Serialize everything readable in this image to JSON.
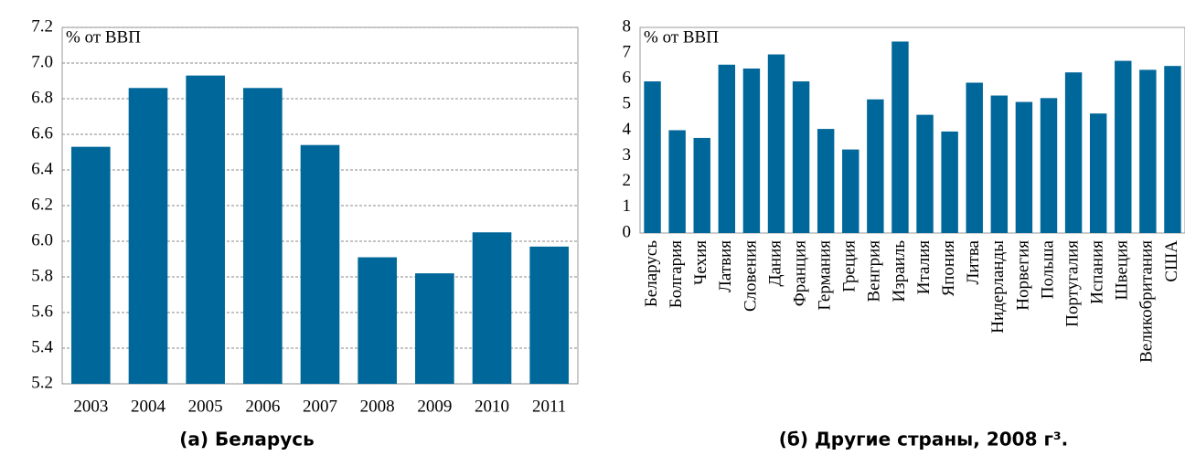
{
  "chart_data": [
    {
      "type": "bar",
      "annotation": "% от ВВП",
      "caption": "(а) Беларусь",
      "categories": [
        "2003",
        "2004",
        "2005",
        "2006",
        "2007",
        "2008",
        "2009",
        "2010",
        "2011"
      ],
      "values": [
        6.53,
        6.86,
        6.93,
        6.86,
        6.54,
        5.91,
        5.82,
        6.05,
        5.97
      ],
      "color": "#00679a",
      "ylim": [
        5.2,
        7.2
      ],
      "yticks": [
        5.2,
        5.4,
        5.6,
        5.8,
        {
          "value": 6,
          "label": "6.0"
        },
        6.2,
        6.4,
        6.6,
        6.8,
        {
          "value": 7,
          "label": "7.0"
        },
        7.2
      ],
      "grid": true
    },
    {
      "type": "bar",
      "annotation": "% от ВВП",
      "caption": "(б) Другие страны, 2008 г³.",
      "categories": [
        "Беларусь",
        "Болгария",
        "Чехия",
        "Латвия",
        "Словения",
        "Дания",
        "Франция",
        "Германия",
        "Греция",
        "Венгрия",
        "Израиль",
        "Италия",
        "Япония",
        "Литва",
        "Нидерланды",
        "Норвегия",
        "Польша",
        "Португалия",
        "Испания",
        "Швеция",
        "Великобритания",
        "США"
      ],
      "values": [
        5.9,
        4.0,
        3.7,
        6.55,
        6.4,
        6.95,
        5.9,
        4.05,
        3.25,
        5.2,
        7.45,
        4.6,
        3.95,
        5.85,
        5.35,
        5.1,
        5.25,
        6.25,
        4.65,
        6.7,
        6.35,
        6.5
      ],
      "color": "#00679a",
      "ylim": [
        0,
        8
      ],
      "yticks": [
        0,
        1,
        2,
        3,
        4,
        5,
        6,
        7,
        8
      ],
      "grid": false
    }
  ]
}
